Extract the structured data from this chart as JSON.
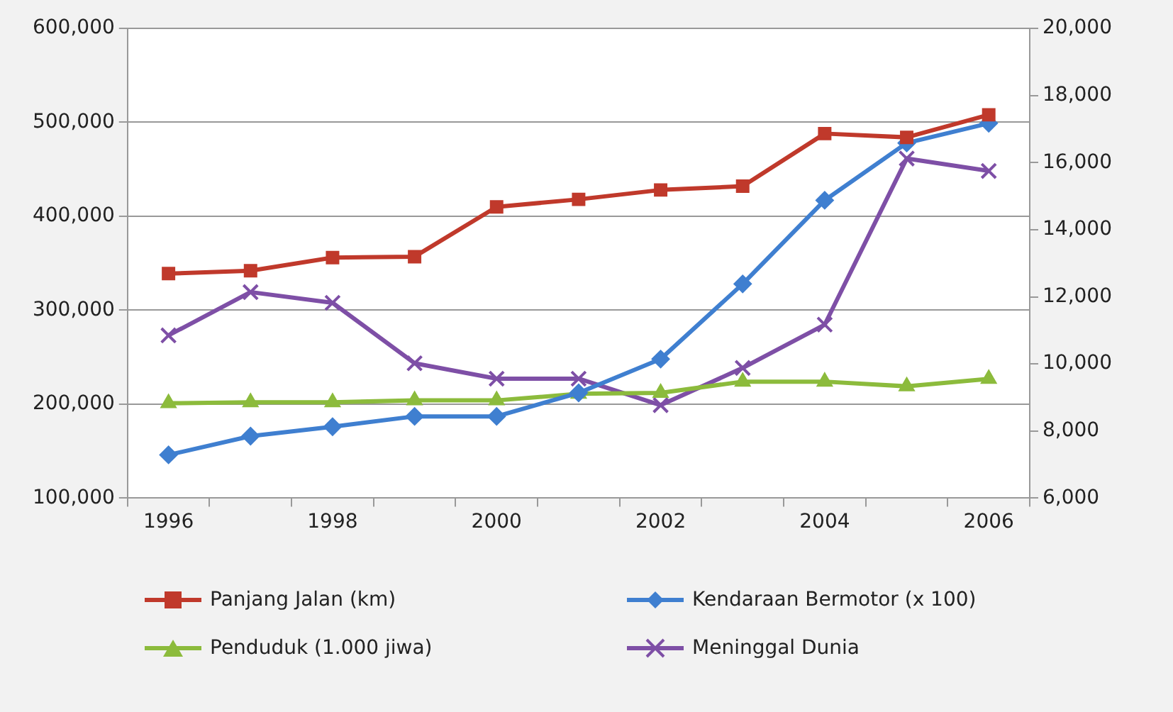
{
  "chart_data": {
    "type": "line",
    "categories": [
      "1996",
      null,
      "1998",
      null,
      "2000",
      null,
      "2002",
      null,
      "2004",
      null,
      "2006"
    ],
    "series": [
      {
        "name": "Panjang Jalan (km)",
        "color": "#c0392b",
        "marker": "square",
        "values": [
          339000,
          342000,
          356000,
          357000,
          410000,
          418000,
          428000,
          432000,
          488000,
          484000,
          508000
        ]
      },
      {
        "name": "Kendaraan Bermotor (x 100)",
        "color": "#3f7fd0",
        "marker": "diamond",
        "values": [
          146000,
          166000,
          176000,
          187000,
          187000,
          212000,
          248000,
          328000,
          417000,
          478000,
          499000
        ]
      },
      {
        "name": "Penduduk (1.000 jiwa)",
        "color": "#8cbb3c",
        "marker": "triangle",
        "values": [
          201000,
          202000,
          202000,
          204000,
          204000,
          211000,
          212000,
          224000,
          224000,
          219000,
          227000
        ]
      },
      {
        "name": "Meninggal Dunia",
        "color": "#7e4fa6",
        "marker": "cross",
        "axis": "y2",
        "values": [
          10850,
          12140,
          11820,
          10020,
          9560,
          9560,
          8770,
          9880,
          11170,
          16120,
          15750
        ]
      }
    ],
    "ylim": [
      100000,
      600000
    ],
    "yticks": [
      {
        "value": 100000,
        "label": "100,000"
      },
      {
        "value": 200000,
        "label": "200,000"
      },
      {
        "value": 300000,
        "label": "300,000"
      },
      {
        "value": 400000,
        "label": "400,000"
      },
      {
        "value": 500000,
        "label": "500,000"
      },
      {
        "value": 600000,
        "label": "600,000"
      }
    ],
    "y2lim": [
      6000,
      20000
    ],
    "y2ticks": [
      {
        "value": 6000,
        "label": "6,000"
      },
      {
        "value": 8000,
        "label": "8,000"
      },
      {
        "value": 10000,
        "label": "10,000"
      },
      {
        "value": 12000,
        "label": "12,000"
      },
      {
        "value": 14000,
        "label": "14,000"
      },
      {
        "value": 16000,
        "label": "16,000"
      },
      {
        "value": 18000,
        "label": "18,000"
      },
      {
        "value": 20000,
        "label": "20,000"
      }
    ],
    "grid": "y",
    "legend": "bottom"
  }
}
